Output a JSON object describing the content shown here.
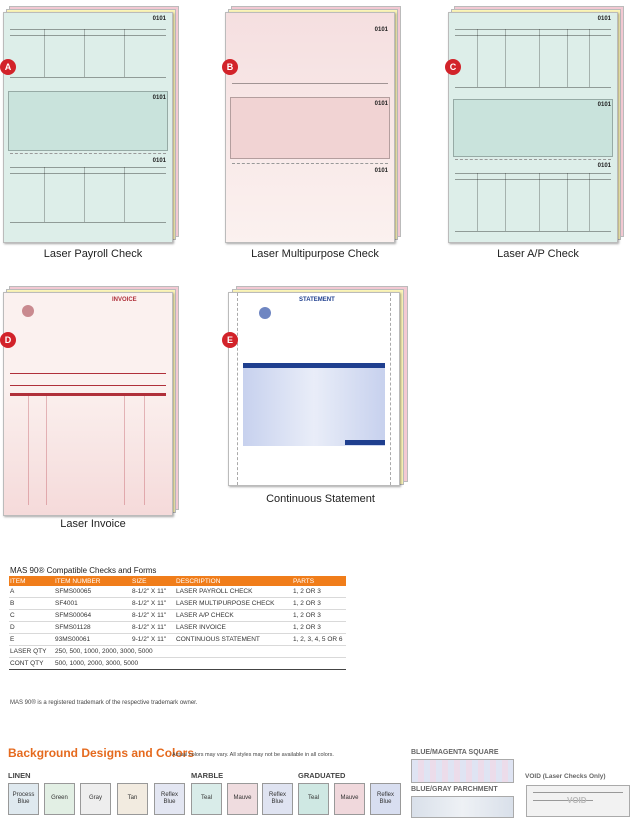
{
  "products": [
    {
      "badge": "A",
      "caption": "Laser Payroll Check",
      "code": "0101"
    },
    {
      "badge": "B",
      "caption": "Laser Multipurpose Check",
      "code": "0101"
    },
    {
      "badge": "C",
      "caption": "Laser A/P Check",
      "code": "0101"
    },
    {
      "badge": "D",
      "caption": "Laser Invoice",
      "title": "INVOICE"
    },
    {
      "badge": "E",
      "caption": "Continuous Statement",
      "title": "STATEMENT"
    }
  ],
  "table": {
    "title": "MAS 90® Compatible Checks and Forms",
    "headers": [
      "ITEM",
      "ITEM NUMBER",
      "SIZE",
      "DESCRIPTION",
      "PARTS"
    ],
    "rows": [
      [
        "A",
        "SFMS00065",
        "8-1/2\" X 11\"",
        "LASER PAYROLL CHECK",
        "1, 2 OR 3"
      ],
      [
        "B",
        "SF4001",
        "8-1/2\" X 11\"",
        "LASER MULTIPURPOSE CHECK",
        "1, 2 OR 3"
      ],
      [
        "C",
        "SFMS00064",
        "8-1/2\" X 11\"",
        "LASER A/P CHECK",
        "1, 2 OR 3"
      ],
      [
        "D",
        "SFMS01128",
        "8-1/2\" X 11\"",
        "LASER INVOICE",
        "1, 2 OR 3"
      ],
      [
        "E",
        "93MS00061",
        "9-1/2\" X 11\"",
        "CONTINUOUS STATEMENT",
        "1, 2, 3, 4, 5 OR 6"
      ]
    ],
    "laser_qty_label": "LASER QTY",
    "laser_qty": "250, 500, 1000, 2000, 3000, 5000",
    "cont_qty_label": "CONT QTY",
    "cont_qty": "500, 1000, 2000, 3000, 5000",
    "trademark": "MAS 90® is a registered trademark of the respective trademark owner."
  },
  "backgrounds": {
    "title": "Background Designs and Colors",
    "note": "Actual colors may vary. All styles may not be available in all colors.",
    "linen_label": "LINEN",
    "marble_label": "MARBLE",
    "graduated_label": "GRADUATED",
    "swatches": [
      {
        "label": "Process Blue",
        "color": "#dfe9ef"
      },
      {
        "label": "Green",
        "color": "#e2efe4"
      },
      {
        "label": "Gray",
        "color": "#eeeeee"
      },
      {
        "label": "Tan",
        "color": "#f2ebe0"
      },
      {
        "label": "Reflex Blue",
        "color": "#e3e6f2"
      },
      {
        "label": "Teal",
        "color": "#d9ece9"
      },
      {
        "label": "Mauve",
        "color": "#efdcdf"
      },
      {
        "label": "Reflex Blue",
        "color": "#dfe3f1"
      },
      {
        "label": "Teal",
        "color": "#cfe8e3"
      },
      {
        "label": "Mauve",
        "color": "#f0d8dc"
      },
      {
        "label": "Reflex Blue",
        "color": "#d8def0"
      }
    ],
    "blue_magenta": "BLUE/MAGENTA SQUARE",
    "blue_gray": "BLUE/GRAY PARCHMENT",
    "void": "VOID (Laser Checks Only)"
  },
  "colors": {
    "accent": "#f07d1a",
    "badge": "#d2232a",
    "title": "#e56a1e"
  }
}
